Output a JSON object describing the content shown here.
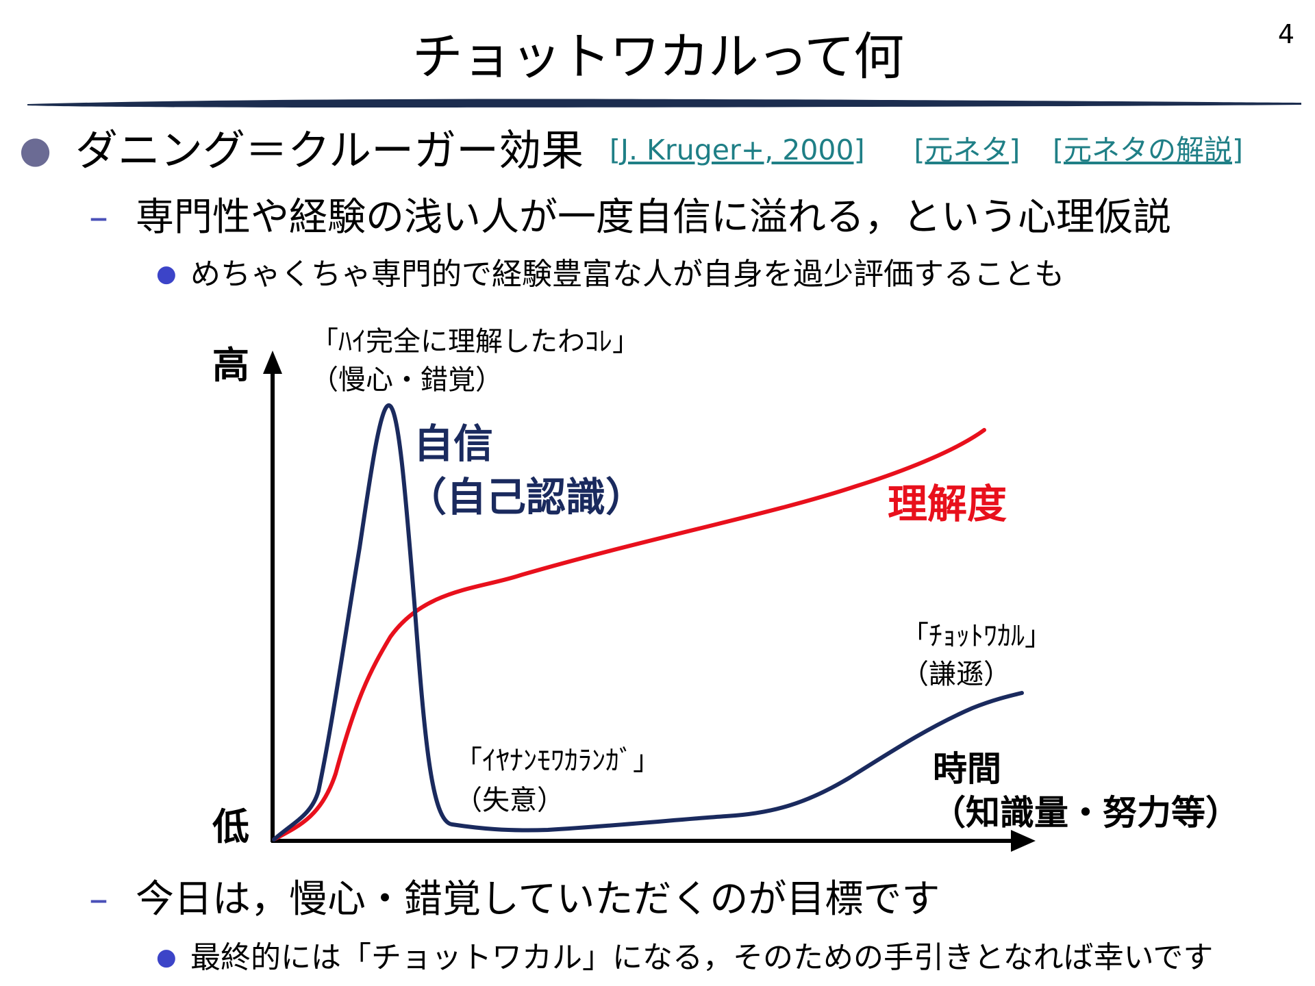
{
  "slide": {
    "title": "チョットワカルって何",
    "page_number": "4"
  },
  "bullets": {
    "b1": {
      "text": "ダニング＝クルーガー効果",
      "refs": [
        "[J. Kruger+, 2000]",
        "[元ネタ]",
        "[元ネタの解説]"
      ]
    },
    "b2": "専門性や経験の浅い人が一度自信に溢れる，という心理仮説",
    "b3": "めちゃくちゃ専門的で経験豊富な人が自身を過少評価することも",
    "b5": "今日は，慢心・錯覚していただくのが目標です",
    "b6": "最終的には「チョットワカル」になる，そのための手引きとなれば幸いです"
  },
  "diagram": {
    "y_high_label": "高",
    "y_low_label": "低",
    "x_label_line1": "時間",
    "x_label_line2": "（知識量・努力等）",
    "confidence_label_line1": "自信",
    "confidence_label_line2": "（自己認識）",
    "understanding_label": "理解度",
    "peak_line1": "「ﾊｲ完全に理解したわｺﾚ」",
    "peak_line2": "（慢心・錯覚）",
    "valley_line1": "「ｲﾔﾅﾝﾓﾜｶﾗﾝｶﾞ」",
    "valley_line2": "（失意）",
    "end_line1": "「ﾁｮｯﾄﾜｶﾙ」",
    "end_line2": "（謙遜）",
    "colors": {
      "confidence": "#1a2a5e",
      "understanding": "#e8101c",
      "axis": "#000000"
    }
  }
}
